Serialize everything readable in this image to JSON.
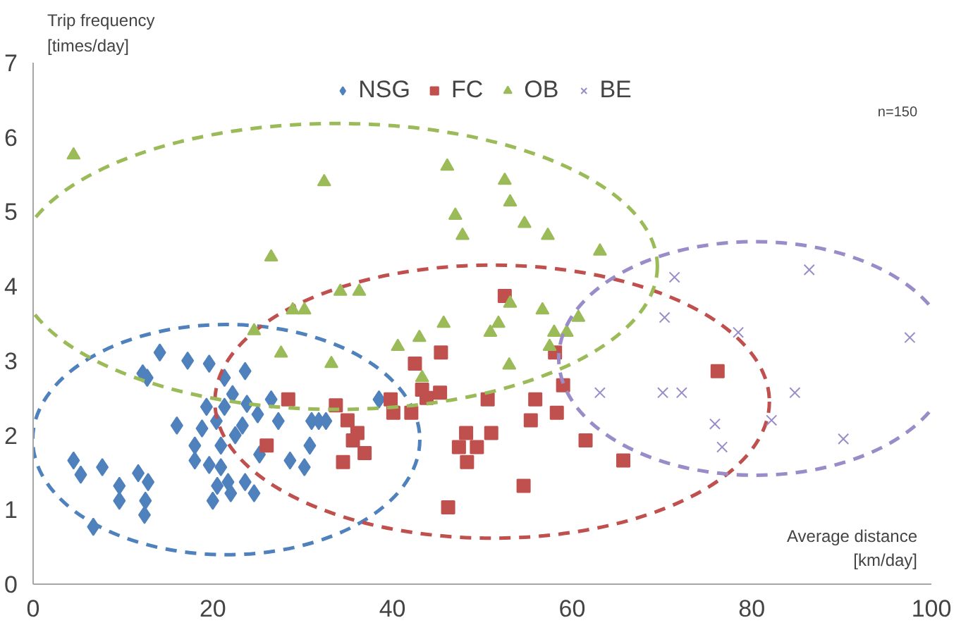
{
  "chart_data": {
    "type": "scatter",
    "ylabel": "Trip frequency [times/day]",
    "xlabel": "Average distance [km/day]",
    "annotations": [
      "n=150"
    ],
    "xlim": [
      0,
      100
    ],
    "ylim": [
      0,
      7
    ],
    "xticks": [
      0,
      20,
      40,
      60,
      80,
      100
    ],
    "yticks": [
      0,
      1,
      2,
      3,
      4,
      5,
      6,
      7
    ],
    "grid": false,
    "legend": "top",
    "series": [
      {
        "name": "NSG",
        "color": "#4f81bd",
        "marker": "diamond",
        "x": [
          14.1,
          12.2,
          12.7,
          17.2,
          19.6,
          21.3,
          23.6,
          19.3,
          16,
          18.8,
          20.4,
          21.3,
          22.2,
          23.8,
          25,
          23.3,
          22.5,
          26.5,
          27.3,
          31,
          31.8,
          32.6,
          18,
          20.9,
          25.2,
          30.8,
          18,
          19.6,
          20.9,
          28.6,
          30.2,
          20.5,
          21.7,
          23.6,
          22,
          20,
          24.6,
          4.5,
          5.3,
          7.7,
          11.7,
          12.8,
          9.6,
          9.6,
          12.5,
          12.4,
          6.7,
          38.5
        ],
        "values": [
          3.11,
          2.83,
          2.77,
          3.0,
          2.96,
          2.77,
          2.86,
          2.38,
          2.13,
          2.09,
          2.19,
          2.38,
          2.55,
          2.42,
          2.28,
          2.13,
          2.0,
          2.48,
          2.19,
          2.19,
          2.19,
          2.19,
          1.86,
          1.86,
          1.74,
          1.86,
          1.66,
          1.6,
          1.57,
          1.66,
          1.57,
          1.32,
          1.37,
          1.37,
          1.22,
          1.12,
          1.22,
          1.66,
          1.47,
          1.57,
          1.49,
          1.37,
          1.32,
          1.12,
          1.12,
          0.93,
          0.77,
          2.48
        ]
      },
      {
        "name": "FC",
        "color": "#c0504d",
        "marker": "square",
        "x": [
          45.4,
          42.5,
          58.1,
          59,
          55.9,
          58.3,
          55.4,
          50.6,
          43.3,
          45.3,
          43.8,
          39.8,
          40.1,
          42.1,
          48.2,
          51,
          47.4,
          49.4,
          48.3,
          61.5,
          65.7,
          54.6,
          46.2,
          33.7,
          35,
          36.1,
          35.6,
          36.9,
          34.5,
          28.4,
          26,
          52.5,
          76.2
        ],
        "values": [
          3.11,
          2.96,
          3.11,
          2.67,
          2.48,
          2.3,
          2.2,
          2.48,
          2.61,
          2.57,
          2.5,
          2.48,
          2.3,
          2.3,
          2.03,
          2.03,
          1.84,
          1.84,
          1.64,
          1.93,
          1.66,
          1.32,
          1.03,
          2.4,
          2.2,
          2.03,
          1.93,
          1.76,
          1.64,
          2.48,
          1.86,
          3.87,
          2.86
        ]
      },
      {
        "name": "OB",
        "color": "#9bbb59",
        "marker": "triangle",
        "x": [
          4.5,
          32.4,
          26.5,
          34.2,
          36.3,
          28.9,
          30.2,
          24.6,
          46.1,
          52.5,
          53.1,
          47,
          47.8,
          54.7,
          57.3,
          63.1,
          53.1,
          56.7,
          60.7,
          45.7,
          51.8,
          50.9,
          43,
          40.6,
          58,
          59.4,
          57.5,
          53,
          43.3,
          33.2,
          27.6
        ],
        "values": [
          5.76,
          5.4,
          4.39,
          3.93,
          3.93,
          3.68,
          3.68,
          3.4,
          5.61,
          5.42,
          5.13,
          4.95,
          4.68,
          4.84,
          4.68,
          4.47,
          3.77,
          3.68,
          3.58,
          3.5,
          3.5,
          3.38,
          3.31,
          3.19,
          3.38,
          3.38,
          3.19,
          2.94,
          2.77,
          2.96,
          3.1
        ]
      },
      {
        "name": "BE",
        "color": "#9a8cc8",
        "marker": "cross",
        "x": [
          86.4,
          71.4,
          70.3,
          78.5,
          97.6,
          63.1,
          70.1,
          72.2,
          84.8,
          75.9,
          76.7,
          82.2,
          90.2
        ],
        "values": [
          4.22,
          4.12,
          3.58,
          3.38,
          3.31,
          2.57,
          2.57,
          2.57,
          2.57,
          2.15,
          1.84,
          2.2,
          1.95
        ]
      }
    ]
  }
}
